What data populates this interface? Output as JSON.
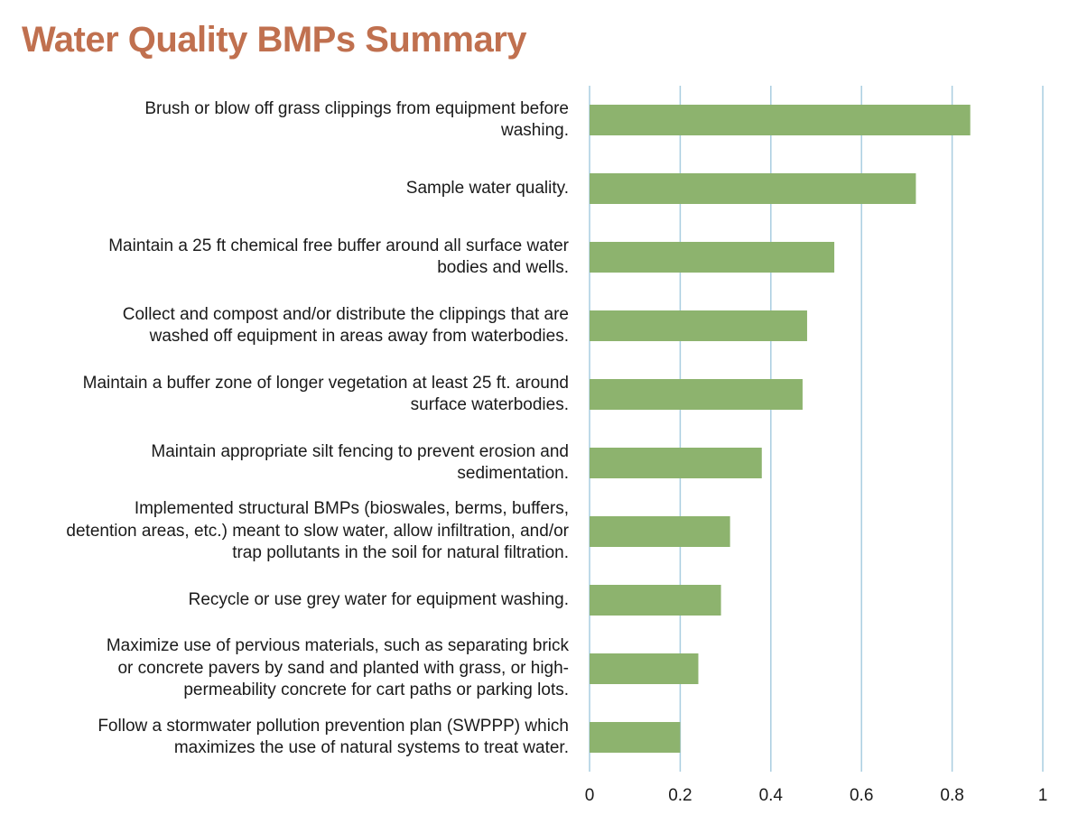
{
  "chart_data": {
    "type": "bar",
    "orientation": "horizontal",
    "title": "Water Quality BMPs Summary",
    "xlabel": "",
    "ylabel": "",
    "xlim": [
      0,
      1
    ],
    "xticks": [
      "0",
      "0.2",
      "0.4",
      "0.6",
      "0.8",
      "1"
    ],
    "grid": true,
    "bar_color": "#8db36e",
    "grid_color": "#a9cde0",
    "title_color": "#c0704f",
    "categories": [
      [
        "Brush or blow off grass clippings from equipment before",
        "washing."
      ],
      [
        "Sample water quality."
      ],
      [
        "Maintain a 25 ft chemical free buffer around all surface water",
        "bodies and wells."
      ],
      [
        "Collect and compost and/or distribute the clippings that are",
        "washed off equipment in areas away from waterbodies."
      ],
      [
        "Maintain a buffer zone of longer vegetation at least 25 ft. around",
        "surface waterbodies."
      ],
      [
        "Maintain appropriate silt fencing to prevent erosion and",
        "sedimentation."
      ],
      [
        "Implemented structural BMPs (bioswales, berms, buffers,",
        "detention areas, etc.) meant to slow water, allow infiltration, and/or",
        "trap pollutants in the soil for natural filtration."
      ],
      [
        "Recycle or use grey water for equipment washing."
      ],
      [
        "Maximize use of pervious materials, such as separating brick",
        "or concrete pavers by sand and planted with grass, or high-",
        "permeability concrete for cart paths or parking lots."
      ],
      [
        "Follow a stormwater pollution prevention plan (SWPPP) which",
        "maximizes the use of natural systems to treat water."
      ]
    ],
    "values": [
      0.84,
      0.72,
      0.54,
      0.48,
      0.47,
      0.38,
      0.31,
      0.29,
      0.24,
      0.2
    ]
  }
}
